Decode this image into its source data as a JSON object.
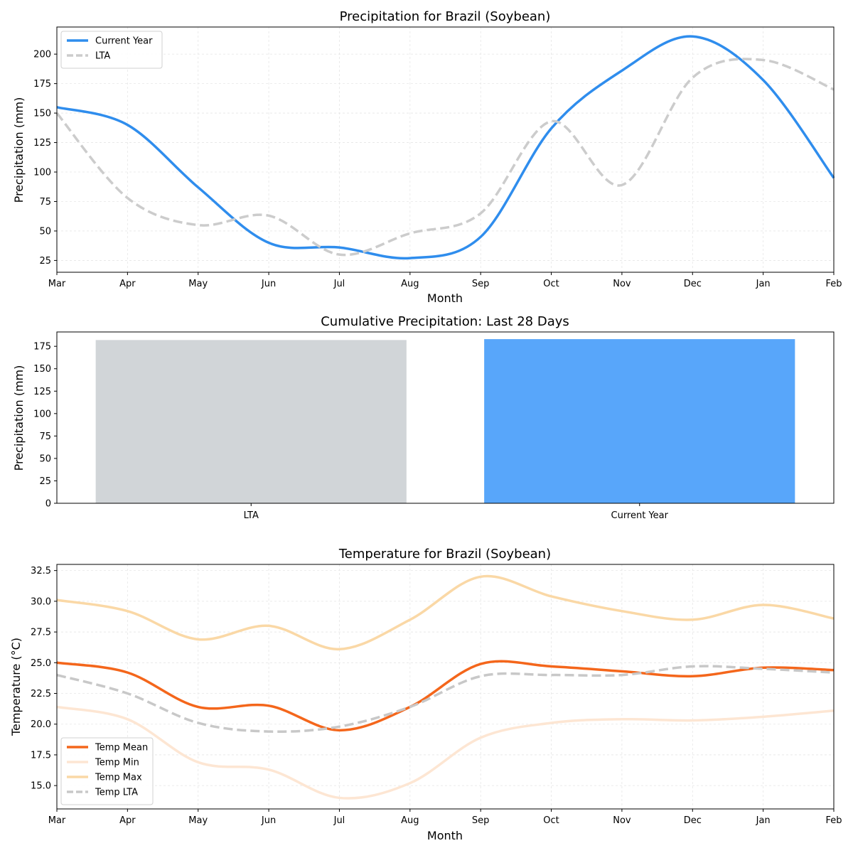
{
  "chart_data": [
    {
      "type": "line",
      "title": "Precipitation for Brazil (Soybean)",
      "xlabel": "Month",
      "ylabel": "Precipitation (mm)",
      "categories": [
        "Mar",
        "Apr",
        "May",
        "Jun",
        "Jul",
        "Aug",
        "Sep",
        "Oct",
        "Nov",
        "Dec",
        "Jan",
        "Feb"
      ],
      "ylim": [
        15,
        223
      ],
      "yticks": [
        25,
        50,
        75,
        100,
        125,
        150,
        175,
        200
      ],
      "grid": true,
      "legend_position": "top-left",
      "series": [
        {
          "name": "Current Year",
          "color": "#2f8ded",
          "style": "solid",
          "values": [
            155,
            140,
            87,
            40,
            36,
            27,
            45,
            137,
            186,
            215,
            178,
            95
          ]
        },
        {
          "name": "LTA",
          "color": "#cccccc",
          "style": "dashed",
          "values": [
            150,
            78,
            55,
            63,
            30,
            48,
            65,
            143,
            89,
            180,
            195,
            170
          ]
        }
      ]
    },
    {
      "type": "bar",
      "title": "Cumulative Precipitation: Last 28 Days",
      "xlabel": "",
      "ylabel": "Precipitation (mm)",
      "categories": [
        "LTA",
        "Current Year"
      ],
      "values": [
        182,
        183
      ],
      "colors": [
        "#d1d5d8",
        "#58a6fa"
      ],
      "ylim": [
        0,
        191
      ],
      "yticks": [
        0,
        25,
        50,
        75,
        100,
        125,
        150,
        175
      ]
    },
    {
      "type": "line",
      "title": "Temperature for Brazil (Soybean)",
      "xlabel": "Month",
      "ylabel": "Temperature (°C)",
      "categories": [
        "Mar",
        "Apr",
        "May",
        "Jun",
        "Jul",
        "Aug",
        "Sep",
        "Oct",
        "Nov",
        "Dec",
        "Jan",
        "Feb"
      ],
      "ylim": [
        13.1,
        33
      ],
      "yticks": [
        15.0,
        17.5,
        20.0,
        22.5,
        25.0,
        27.5,
        30.0,
        32.5
      ],
      "grid": true,
      "legend_position": "bottom-left",
      "series": [
        {
          "name": "Temp Mean",
          "color": "#f4661b",
          "style": "solid",
          "values": [
            25.0,
            24.2,
            21.4,
            21.5,
            19.5,
            21.4,
            24.9,
            24.7,
            24.3,
            23.9,
            24.6,
            24.4
          ]
        },
        {
          "name": "Temp Min",
          "color": "#fde6d3",
          "style": "solid",
          "values": [
            21.4,
            20.4,
            16.9,
            16.3,
            14.0,
            15.2,
            18.9,
            20.1,
            20.4,
            20.3,
            20.6,
            21.1
          ]
        },
        {
          "name": "Temp Max",
          "color": "#fad8a6",
          "style": "solid",
          "values": [
            30.1,
            29.2,
            26.9,
            28.0,
            26.1,
            28.5,
            32.0,
            30.4,
            29.2,
            28.5,
            29.7,
            28.6
          ]
        },
        {
          "name": "Temp LTA",
          "color": "#c8c8c8",
          "style": "dashed",
          "values": [
            24.0,
            22.5,
            20.1,
            19.4,
            19.8,
            21.4,
            23.9,
            24.0,
            24.0,
            24.7,
            24.5,
            24.2
          ]
        }
      ]
    }
  ]
}
